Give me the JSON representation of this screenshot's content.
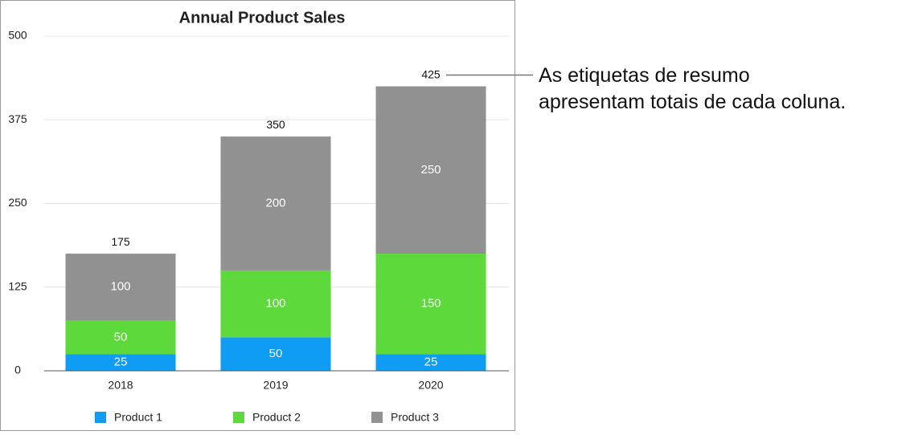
{
  "chart_data": {
    "type": "stacked_bar",
    "title": "Annual Product Sales",
    "categories": [
      "2018",
      "2019",
      "2020"
    ],
    "series": [
      {
        "name": "Product 1",
        "color": "#0f9cf5",
        "values": [
          25,
          50,
          25
        ]
      },
      {
        "name": "Product 2",
        "color": "#5dd93b",
        "values": [
          50,
          100,
          150
        ]
      },
      {
        "name": "Product 3",
        "color": "#919191",
        "values": [
          100,
          200,
          250
        ]
      }
    ],
    "totals": [
      175,
      350,
      425
    ],
    "ylim": [
      0,
      500
    ],
    "yticks": [
      0,
      125,
      250,
      375,
      500
    ],
    "grid": true,
    "legend": "bottom",
    "annotation": [
      "As etiquetas de resumo",
      "apresentam totais de cada coluna."
    ]
  }
}
